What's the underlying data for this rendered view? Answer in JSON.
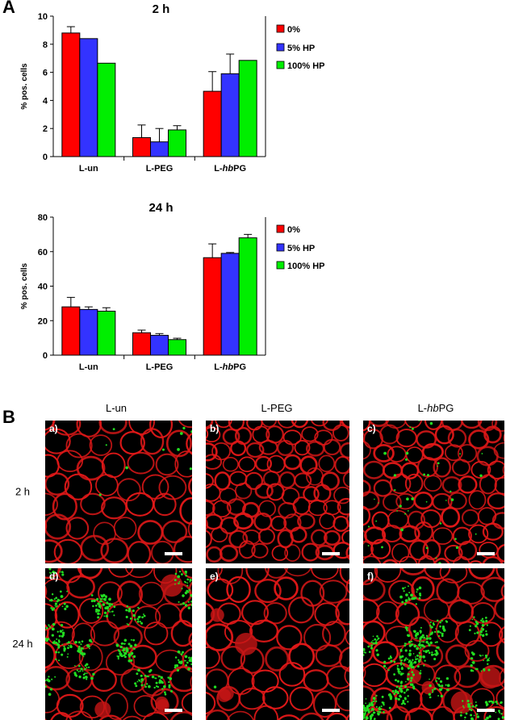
{
  "panel_a_label": "A",
  "panel_b_label": "B",
  "colors": {
    "0%": "#ff0000",
    "5% HP": "#3333ff",
    "100% HP": "#00ee00",
    "cell": "#e01818",
    "bg": "#000000",
    "dot": "#22dd22"
  },
  "chart_data": [
    {
      "type": "bar",
      "title": "2 h",
      "ylabel": "% pos. cells",
      "categories": [
        "L-un",
        "L-PEG",
        "L-hbPG"
      ],
      "category_labels": [
        {
          "pre": "L-un",
          "ital": "",
          "post": ""
        },
        {
          "pre": "L-PEG",
          "ital": "",
          "post": ""
        },
        {
          "pre": "L-",
          "ital": "hb",
          "post": "PG"
        }
      ],
      "ylim": [
        0,
        10
      ],
      "yticks": [
        "0",
        "2",
        "4",
        "6",
        "8",
        "10"
      ],
      "series": [
        {
          "name": "0%",
          "values": [
            8.8,
            1.35,
            4.65
          ],
          "errors": [
            0.45,
            0.9,
            1.4
          ]
        },
        {
          "name": "5% HP",
          "values": [
            8.4,
            1.05,
            5.9
          ],
          "errors": [
            0,
            0.95,
            1.4
          ]
        },
        {
          "name": "100% HP",
          "values": [
            6.65,
            1.9,
            6.85
          ],
          "errors": [
            0,
            0.3,
            0
          ]
        }
      ],
      "legend": "right"
    },
    {
      "type": "bar",
      "title": "24 h",
      "ylabel": "% pos. cells",
      "categories": [
        "L-un",
        "L-PEG",
        "L-hbPG"
      ],
      "category_labels": [
        {
          "pre": "L-un",
          "ital": "",
          "post": ""
        },
        {
          "pre": "L-PEG",
          "ital": "",
          "post": ""
        },
        {
          "pre": "L-",
          "ital": "hb",
          "post": "PG"
        }
      ],
      "ylim": [
        0,
        80
      ],
      "yticks": [
        "0",
        "20",
        "40",
        "60",
        "80"
      ],
      "series": [
        {
          "name": "0%",
          "values": [
            28,
            13,
            56.5
          ],
          "errors": [
            5.5,
            1.5,
            8
          ]
        },
        {
          "name": "5% HP",
          "values": [
            26.5,
            11.5,
            59
          ],
          "errors": [
            1.5,
            1,
            0.5
          ]
        },
        {
          "name": "100% HP",
          "values": [
            25.5,
            9,
            68
          ],
          "errors": [
            2,
            0.8,
            2
          ]
        }
      ],
      "legend": "right"
    }
  ],
  "micrographs": {
    "columns": [
      "L-un",
      "L-PEG",
      "L-hbPG"
    ],
    "rows": [
      "2 h",
      "24 h"
    ],
    "panels": [
      {
        "label": "a)",
        "green": 25
      },
      {
        "label": "b)",
        "green": 0
      },
      {
        "label": "c)",
        "green": 70
      },
      {
        "label": "d)",
        "green": 420
      },
      {
        "label": "e)",
        "green": 3
      },
      {
        "label": "f)",
        "green": 480
      }
    ]
  }
}
